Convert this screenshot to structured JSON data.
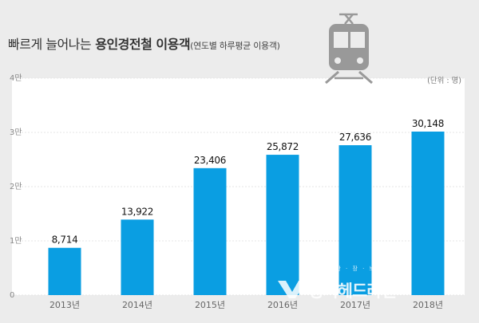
{
  "title": {
    "light": "빠르게 늘어나는",
    "bold": "용인경전철 이용객",
    "sub": "(연도별 하루평균 이용객)"
  },
  "icon": "train-icon",
  "watermark": {
    "main": "경기헤드라인",
    "sub": "경 기 한 · 장 · 보 · 도 · 스"
  },
  "colors": {
    "bar": "#0a9ee2",
    "plot_background": "#ffffff",
    "page_background": "#ececec",
    "icon": "#999999"
  },
  "chart_data": {
    "type": "bar",
    "unit_note": "(단위 : 명)",
    "categories": [
      "2013년",
      "2014년",
      "2015년",
      "2016년",
      "2017년",
      "2018년"
    ],
    "values": [
      8714,
      13922,
      23406,
      25872,
      27636,
      30148
    ],
    "value_labels": [
      "8,714",
      "13,922",
      "23,406",
      "25,872",
      "27,636",
      "30,148"
    ],
    "y_ticks": [
      {
        "value": 0,
        "label": "0"
      },
      {
        "value": 10000,
        "label": "1만"
      },
      {
        "value": 20000,
        "label": "2만"
      },
      {
        "value": 30000,
        "label": "3만"
      },
      {
        "value": 40000,
        "label": "4만"
      }
    ],
    "ylim": [
      0,
      40000
    ],
    "grid": true,
    "legend": "none"
  }
}
